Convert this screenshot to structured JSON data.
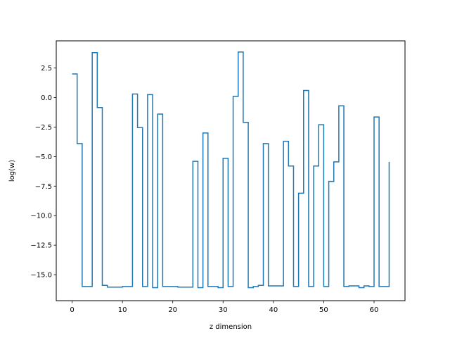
{
  "chart_data": {
    "type": "line",
    "drawstyle": "steps-post",
    "title": "",
    "xlabel": "z dimension",
    "ylabel": "log(w)",
    "xlim": [
      -3.15,
      66.15
    ],
    "ylim": [
      -17.2,
      4.8
    ],
    "xticks": [
      0,
      10,
      20,
      30,
      40,
      50,
      60
    ],
    "xtick_labels": [
      "0",
      "10",
      "20",
      "30",
      "40",
      "50",
      "60"
    ],
    "yticks": [
      2.5,
      0.0,
      -2.5,
      -5.0,
      -7.5,
      -10.0,
      -12.5,
      -15.0
    ],
    "ytick_labels": [
      "2.5",
      "0.0",
      "−2.5",
      "−5.0",
      "−7.5",
      "−10.0",
      "−12.5",
      "−15.0"
    ],
    "grid": false,
    "series": [
      {
        "color": "#1f77b4",
        "x": [
          0,
          1,
          2,
          3,
          4,
          5,
          6,
          7,
          8,
          9,
          10,
          11,
          12,
          13,
          14,
          15,
          16,
          17,
          18,
          19,
          20,
          21,
          22,
          23,
          24,
          25,
          26,
          27,
          28,
          29,
          30,
          31,
          32,
          33,
          34,
          35,
          36,
          37,
          38,
          39,
          40,
          41,
          42,
          43,
          44,
          45,
          46,
          47,
          48,
          49,
          50,
          51,
          52,
          53,
          54,
          55,
          56,
          57,
          58,
          59,
          60,
          61,
          62,
          63
        ],
        "values": [
          2.0,
          -3.9,
          -16.0,
          -16.0,
          3.8,
          -0.85,
          -15.9,
          -16.05,
          -16.05,
          -16.05,
          -16.0,
          -16.0,
          0.3,
          -2.55,
          -16.0,
          0.25,
          -16.1,
          -1.4,
          -16.0,
          -16.0,
          -16.0,
          -16.05,
          -16.05,
          -16.05,
          -5.4,
          -16.1,
          -3.0,
          -16.0,
          -16.0,
          -16.1,
          -5.15,
          -16.0,
          0.1,
          3.85,
          -2.1,
          -16.1,
          -16.0,
          -15.9,
          -3.9,
          -15.95,
          -15.95,
          -15.95,
          -3.7,
          -5.8,
          -16.0,
          -8.1,
          0.6,
          -16.0,
          -5.8,
          -2.3,
          -16.0,
          -7.1,
          -5.45,
          -0.7,
          -16.0,
          -15.95,
          -15.95,
          -16.1,
          -15.95,
          -16.0,
          -1.65,
          -16.0,
          -16.0,
          -5.45
        ]
      }
    ]
  }
}
